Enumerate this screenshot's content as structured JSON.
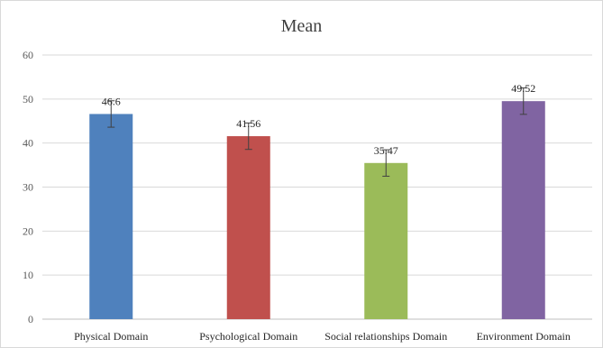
{
  "chart_data": {
    "type": "bar",
    "title": "Mean",
    "xlabel": "",
    "ylabel": "",
    "categories": [
      "Physical Domain",
      "Psychological Domain",
      "Social relationships Domain",
      "Environment Domain"
    ],
    "values": [
      46.6,
      41.56,
      35.47,
      49.52
    ],
    "data_labels": [
      "46.6",
      "41.56",
      "35.47",
      "49.52"
    ],
    "error": [
      3,
      3,
      3,
      3
    ],
    "colors": [
      "#4f81bd",
      "#c0504d",
      "#9bbb59",
      "#8064a2"
    ],
    "ylim": [
      0,
      60
    ],
    "yticks": [
      0,
      10,
      20,
      30,
      40,
      50,
      60
    ],
    "grid": true,
    "legend": "none"
  }
}
